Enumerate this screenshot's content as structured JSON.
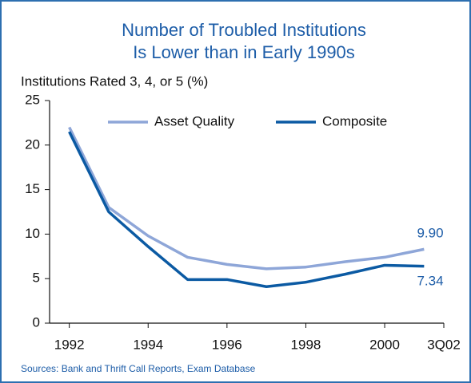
{
  "chart_data": {
    "type": "line",
    "title": [
      "Number of Troubled Institutions",
      "Is Lower than in Early 1990s"
    ],
    "y_label": "Institutions Rated 3, 4, or 5 (%)",
    "source": "Sources: Bank and Thrift Call Reports, Exam Database",
    "x": [
      1992,
      1993,
      1994,
      1995,
      1996,
      1997,
      1998,
      1999,
      2000,
      2001
    ],
    "series": [
      {
        "name": "Asset Quality",
        "color": "#8ea6d8",
        "values": [
          22,
          13,
          9.8,
          7.4,
          6.6,
          6.1,
          6.3,
          6.9,
          7.4,
          8.3
        ]
      },
      {
        "name": "Composite",
        "color": "#0b5aa3",
        "values": [
          21.5,
          12.5,
          8.6,
          4.9,
          4.9,
          4.1,
          4.6,
          5.5,
          6.5,
          6.4
        ]
      }
    ],
    "annotations": [
      "9.90",
      "7.34"
    ],
    "xlim": [
      1991.5,
      2001.5
    ],
    "xticks": [
      1992,
      1994,
      1996,
      1998,
      2000,
      {
        "value": 2001.5,
        "label": "3Q02"
      }
    ],
    "ylim": [
      0,
      25
    ],
    "yticks": [
      0,
      5,
      10,
      15,
      20,
      25
    ],
    "grid": false,
    "legend": "top"
  }
}
